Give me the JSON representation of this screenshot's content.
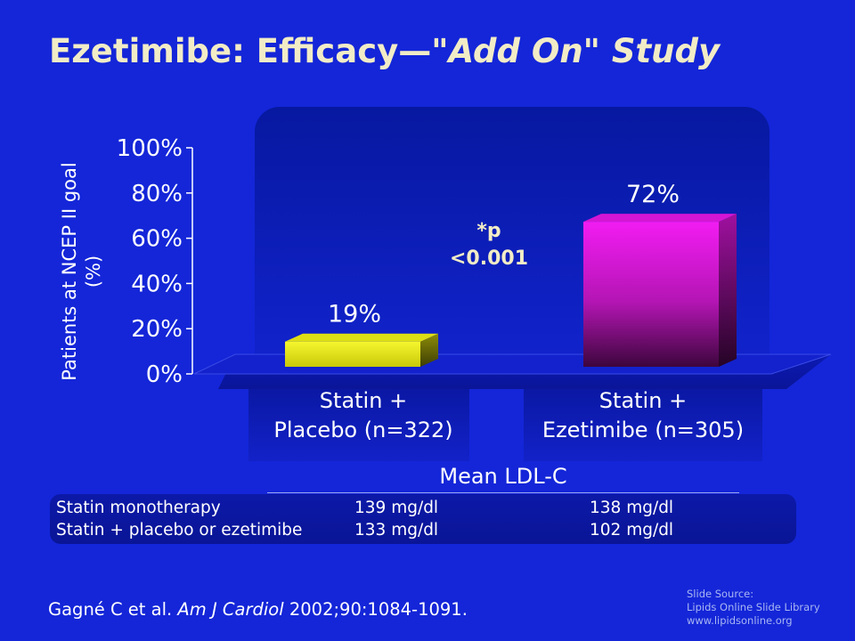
{
  "title": {
    "main": "Ezetimibe: Efficacy—",
    "italic": "\"Add On\" Study"
  },
  "chart_data": {
    "type": "bar",
    "title": "Ezetimibe: Efficacy—\"Add On\" Study",
    "ylabel_lines": [
      "Patients at NCEP II goal",
      "(%)"
    ],
    "ylim": [
      0,
      100
    ],
    "yticks": [
      0,
      20,
      40,
      60,
      80,
      100
    ],
    "ytick_labels": [
      "0%",
      "20%",
      "40%",
      "60%",
      "80%",
      "100%"
    ],
    "categories": [
      [
        "Statin +",
        "Placebo (n=322)"
      ],
      [
        "Statin +",
        "Ezetimibe (n=305)"
      ]
    ],
    "values": [
      19,
      72
    ],
    "value_labels": [
      "19%",
      "72%"
    ],
    "bar_colors": [
      "#ecec1a",
      "#ee17ee"
    ],
    "annotation": [
      "*p",
      "<0.001"
    ],
    "grid": false,
    "legend": "none"
  },
  "ldl_table": {
    "heading": "Mean LDL-C",
    "rows": [
      [
        "Statin monotherapy",
        "139 mg/dl",
        "138 mg/dl"
      ],
      [
        "Statin + placebo or ezetimibe",
        "133 mg/dl",
        "102 mg/dl"
      ]
    ]
  },
  "citation": {
    "authors": "Gagné C et al.",
    "journal": "Am J Cardiol",
    "details": "2002;90:1084-1091."
  },
  "source": {
    "line1": "Slide Source:",
    "line2": "Lipids Online Slide Library",
    "line3": "www.lipidsonline.org"
  },
  "colors": {
    "background": "#1426d8",
    "title": "#f2ecc6",
    "placebo_bar": "#ecec1a",
    "ezetimibe_bar": "#ee17ee",
    "panel": "#0a17a6"
  }
}
